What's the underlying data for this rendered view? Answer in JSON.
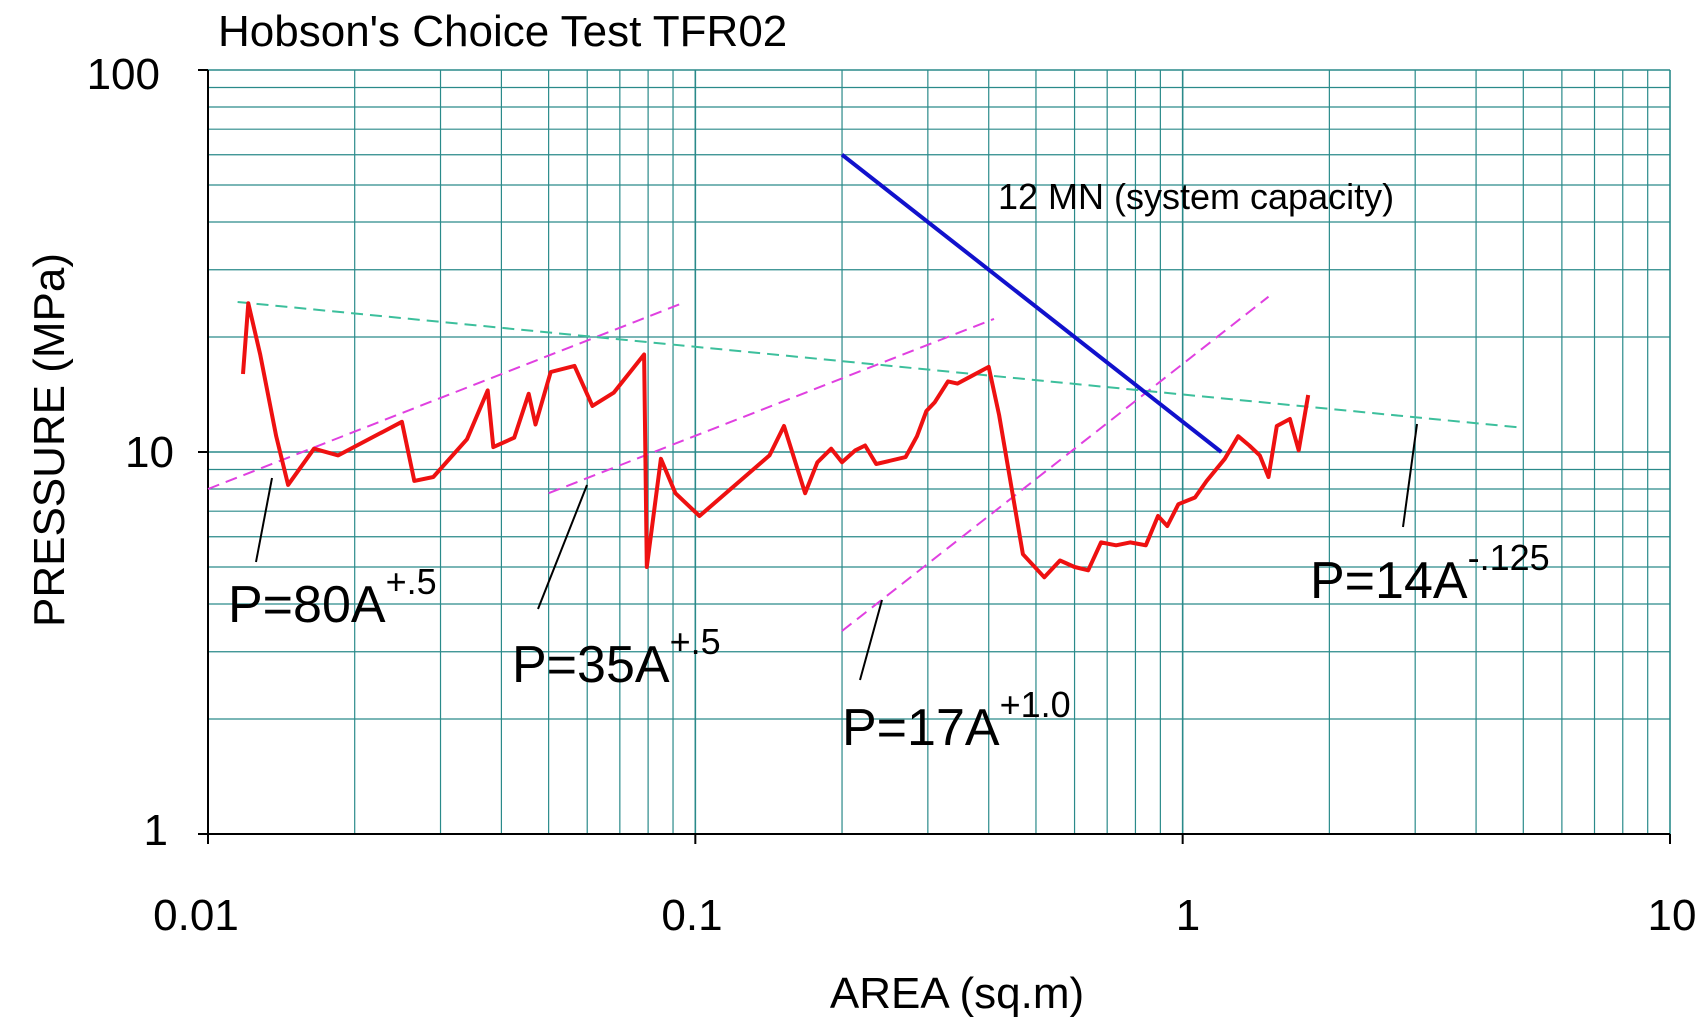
{
  "chart_data": {
    "type": "line",
    "title": "Hobson's Choice Test TFR02",
    "xlabel": "AREA (sq.m)",
    "ylabel": "PRESSURE (MPa)",
    "xscale": "log",
    "yscale": "log",
    "xlim": [
      0.01,
      10
    ],
    "ylim": [
      1,
      100
    ],
    "grid": true,
    "x_tick_labels": [
      "0.01",
      "0.1",
      "1",
      "10"
    ],
    "y_tick_labels": [
      "1",
      "10",
      "100"
    ],
    "colors": {
      "test_data": "#ee1111",
      "system_capacity": "#1111cc",
      "fit_positive": "#e040e0",
      "fit_negative": "#3cbf9c",
      "grid": "#2a8a8a"
    },
    "series": [
      {
        "points": [
          [
            0.0118,
            16
          ],
          [
            0.0121,
            24.5
          ],
          [
            0.0128,
            18
          ],
          [
            0.0138,
            11
          ],
          [
            0.0146,
            8.2
          ],
          [
            0.0165,
            10.2
          ],
          [
            0.0185,
            9.8
          ],
          [
            0.025,
            12
          ],
          [
            0.0265,
            8.4
          ],
          [
            0.029,
            8.6
          ],
          [
            0.034,
            10.8
          ],
          [
            0.0375,
            14.5
          ],
          [
            0.0385,
            10.3
          ],
          [
            0.0425,
            10.9
          ],
          [
            0.0455,
            14.2
          ],
          [
            0.047,
            11.8
          ],
          [
            0.0505,
            16.2
          ],
          [
            0.0565,
            16.8
          ],
          [
            0.0615,
            13.2
          ],
          [
            0.068,
            14.3
          ],
          [
            0.0785,
            18
          ],
          [
            0.0795,
            5
          ],
          [
            0.085,
            9.6
          ],
          [
            0.091,
            7.8
          ],
          [
            0.102,
            6.8
          ],
          [
            0.142,
            9.8
          ],
          [
            0.152,
            11.7
          ],
          [
            0.168,
            7.8
          ],
          [
            0.178,
            9.4
          ],
          [
            0.19,
            10.2
          ],
          [
            0.2,
            9.4
          ],
          [
            0.213,
            10.1
          ],
          [
            0.223,
            10.4
          ],
          [
            0.235,
            9.3
          ],
          [
            0.27,
            9.7
          ],
          [
            0.285,
            11
          ],
          [
            0.298,
            12.8
          ],
          [
            0.31,
            13.5
          ],
          [
            0.33,
            15.3
          ],
          [
            0.345,
            15.1
          ],
          [
            0.365,
            15.7
          ],
          [
            0.4,
            16.7
          ],
          [
            0.42,
            12.5
          ],
          [
            0.47,
            5.4
          ],
          [
            0.52,
            4.7
          ],
          [
            0.56,
            5.2
          ],
          [
            0.6,
            5
          ],
          [
            0.64,
            4.9
          ],
          [
            0.68,
            5.8
          ],
          [
            0.73,
            5.7
          ],
          [
            0.78,
            5.8
          ],
          [
            0.84,
            5.7
          ],
          [
            0.89,
            6.8
          ],
          [
            0.93,
            6.4
          ],
          [
            0.98,
            7.3
          ],
          [
            1.06,
            7.6
          ],
          [
            1.12,
            8.4
          ],
          [
            1.22,
            9.6
          ],
          [
            1.3,
            11
          ],
          [
            1.37,
            10.4
          ],
          [
            1.44,
            9.8
          ],
          [
            1.5,
            8.6
          ],
          [
            1.56,
            11.7
          ],
          [
            1.66,
            12.2
          ],
          [
            1.73,
            10.1
          ],
          [
            1.81,
            14.1
          ]
        ]
      },
      {
        "name": "12 MN (system capacity)",
        "points": [
          [
            0.2,
            60
          ],
          [
            1.2,
            10
          ]
        ]
      },
      {
        "name": "P=80A+.5",
        "points": [
          [
            0.01,
            8
          ],
          [
            0.094,
            24.5
          ]
        ]
      },
      {
        "name": "P=35A+.5",
        "points": [
          [
            0.05,
            7.8
          ],
          [
            0.41,
            22.3
          ]
        ]
      },
      {
        "name": "P=17A+1.0",
        "points": [
          [
            0.2,
            3.4
          ],
          [
            1.5,
            25.5
          ]
        ]
      },
      {
        "name": "P=14A-.125",
        "points": [
          [
            0.0115,
            24.7
          ],
          [
            4.9,
            11.6
          ]
        ]
      }
    ],
    "annotations": [
      {
        "base": "P=80A",
        "sup": "+.5"
      },
      {
        "base": "P=35A",
        "sup": "+.5"
      },
      {
        "base": "P=17A",
        "sup": "+1.0"
      },
      {
        "base": "P=14A",
        "sup": "-.125"
      },
      {
        "text": "12 MN (system capacity)"
      }
    ]
  }
}
